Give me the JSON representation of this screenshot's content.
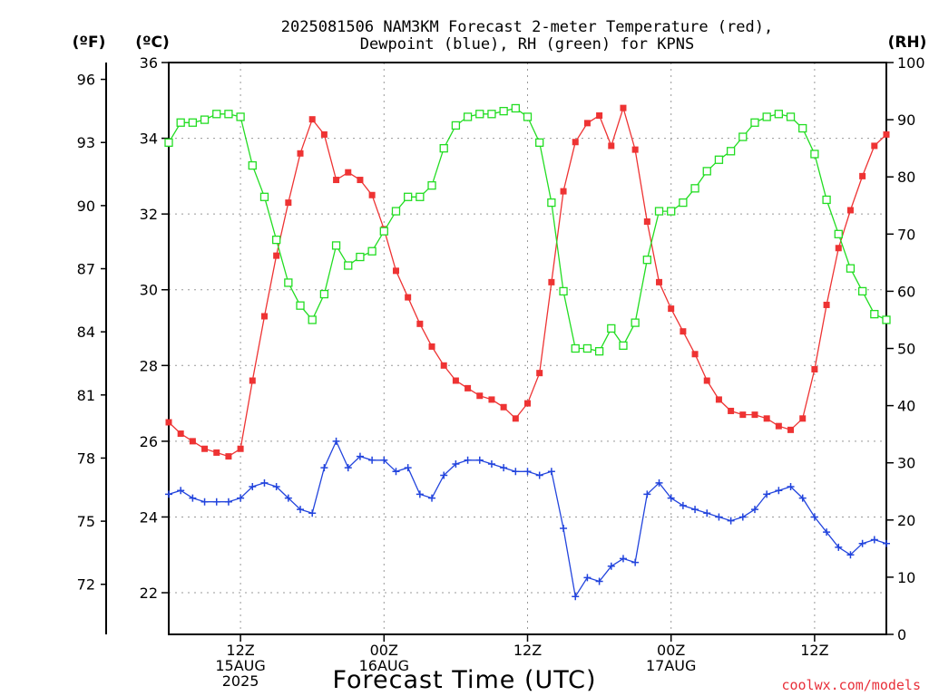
{
  "chart_data": {
    "type": "line",
    "title_line1": "2025081506 NAM3KM Forecast 2-meter Temperature (red),",
    "title_line2": "Dewpoint (blue), RH (green) for KPNS",
    "xlabel": "Forecast Time (UTC)",
    "credit": "coolwx.com/models",
    "unit_labels": {
      "fahrenheit": "(ºF)",
      "celsius": "(ºC)",
      "rh": "(RH)"
    },
    "x_range_hours_utc_from_15AUG00Z": [
      6,
      66
    ],
    "x_ticks": [
      {
        "hour": 12,
        "lines": [
          "12Z",
          "15AUG",
          "2025"
        ]
      },
      {
        "hour": 24,
        "lines": [
          "00Z",
          "16AUG"
        ]
      },
      {
        "hour": 36,
        "lines": [
          "12Z"
        ]
      },
      {
        "hour": 48,
        "lines": [
          "00Z",
          "17AUG"
        ]
      },
      {
        "hour": 60,
        "lines": [
          "12Z"
        ]
      }
    ],
    "y_left_celsius": {
      "range": [
        20.9,
        36.0
      ],
      "ticks": [
        22,
        24,
        26,
        28,
        30,
        32,
        34,
        36
      ]
    },
    "y_left_fahrenheit": {
      "ticks": [
        72,
        75,
        78,
        81,
        84,
        87,
        90,
        93,
        96
      ]
    },
    "y_right_rh": {
      "range": [
        0,
        100
      ],
      "ticks": [
        0,
        10,
        20,
        30,
        40,
        50,
        60,
        70,
        80,
        90,
        100
      ]
    },
    "grid": true,
    "colors": {
      "temperature": "#ee3333",
      "dewpoint": "#2244dd",
      "rh": "#22dd22"
    },
    "series": [
      {
        "name": "Temperature",
        "unit": "C",
        "axis": "celsius",
        "marker": "filled-square",
        "x": [
          6,
          7,
          8,
          9,
          10,
          11,
          12,
          13,
          14,
          15,
          16,
          17,
          18,
          19,
          20,
          21,
          22,
          23,
          24,
          25,
          26,
          27,
          28,
          29,
          30,
          31,
          32,
          33,
          34,
          35,
          36,
          37,
          38,
          39,
          40,
          41,
          42,
          43,
          44,
          45,
          46,
          47,
          48,
          49,
          50,
          51,
          52,
          53,
          54,
          55,
          56,
          57,
          58,
          59,
          60,
          61,
          62,
          63,
          64,
          65,
          66
        ],
        "values": [
          26.5,
          26.2,
          26.0,
          25.8,
          25.7,
          25.6,
          25.8,
          27.6,
          29.3,
          30.9,
          32.3,
          33.6,
          34.5,
          34.1,
          32.9,
          33.1,
          32.9,
          32.5,
          31.6,
          30.5,
          29.8,
          29.1,
          28.5,
          28.0,
          27.6,
          27.4,
          27.2,
          27.1,
          26.9,
          26.6,
          27.0,
          27.8,
          30.2,
          32.6,
          33.9,
          34.4,
          34.6,
          33.8,
          34.8,
          33.7,
          31.8,
          30.2,
          29.5,
          28.9,
          28.3,
          27.6,
          27.1,
          26.8,
          26.7,
          26.7,
          26.6,
          26.4,
          26.3,
          26.6,
          27.9,
          29.6,
          31.1,
          32.1,
          33.0,
          33.8,
          34.1
        ]
      },
      {
        "name": "Dewpoint",
        "unit": "C",
        "axis": "celsius",
        "marker": "plus",
        "x": [
          6,
          7,
          8,
          9,
          10,
          11,
          12,
          13,
          14,
          15,
          16,
          17,
          18,
          19,
          20,
          21,
          22,
          23,
          24,
          25,
          26,
          27,
          28,
          29,
          30,
          31,
          32,
          33,
          34,
          35,
          36,
          37,
          38,
          39,
          40,
          41,
          42,
          43,
          44,
          45,
          46,
          47,
          48,
          49,
          50,
          51,
          52,
          53,
          54,
          55,
          56,
          57,
          58,
          59,
          60,
          61,
          62,
          63,
          64,
          65,
          66
        ],
        "values": [
          24.6,
          24.7,
          24.5,
          24.4,
          24.4,
          24.4,
          24.5,
          24.8,
          24.9,
          24.8,
          24.5,
          24.2,
          24.1,
          25.3,
          26.0,
          25.3,
          25.6,
          25.5,
          25.5,
          25.2,
          25.3,
          24.6,
          24.5,
          25.1,
          25.4,
          25.5,
          25.5,
          25.4,
          25.3,
          25.2,
          25.2,
          25.1,
          25.2,
          23.7,
          21.9,
          22.4,
          22.3,
          22.7,
          22.9,
          22.8,
          24.6,
          24.9,
          24.5,
          24.3,
          24.2,
          24.1,
          24.0,
          23.9,
          24.0,
          24.2,
          24.6,
          24.7,
          24.8,
          24.5,
          24.0,
          23.6,
          23.2,
          23.0,
          23.3,
          23.4,
          23.3
        ]
      },
      {
        "name": "RH",
        "unit": "%",
        "axis": "rh",
        "marker": "open-square",
        "x": [
          6,
          7,
          8,
          9,
          10,
          11,
          12,
          13,
          14,
          15,
          16,
          17,
          18,
          19,
          20,
          21,
          22,
          23,
          24,
          25,
          26,
          27,
          28,
          29,
          30,
          31,
          32,
          33,
          34,
          35,
          36,
          37,
          38,
          39,
          40,
          41,
          42,
          43,
          44,
          45,
          46,
          47,
          48,
          49,
          50,
          51,
          52,
          53,
          54,
          55,
          56,
          57,
          58,
          59,
          60,
          61,
          62,
          63,
          64,
          65,
          66
        ],
        "values": [
          86,
          89.5,
          89.5,
          90,
          91,
          91,
          90.5,
          82,
          76.5,
          69,
          61.5,
          57.5,
          55,
          59.5,
          68,
          64.5,
          66,
          67,
          70.5,
          74,
          76.5,
          76.5,
          78.5,
          85,
          89,
          90.5,
          91,
          91,
          91.5,
          92,
          90.5,
          86,
          75.5,
          60,
          50,
          50,
          49.5,
          53.5,
          50.5,
          54.5,
          65.5,
          74,
          74,
          75.5,
          78,
          81,
          83,
          84.5,
          87,
          89.5,
          90.5,
          91,
          90.5,
          88.5,
          84,
          76,
          70,
          64,
          60,
          56,
          55
        ]
      }
    ]
  }
}
